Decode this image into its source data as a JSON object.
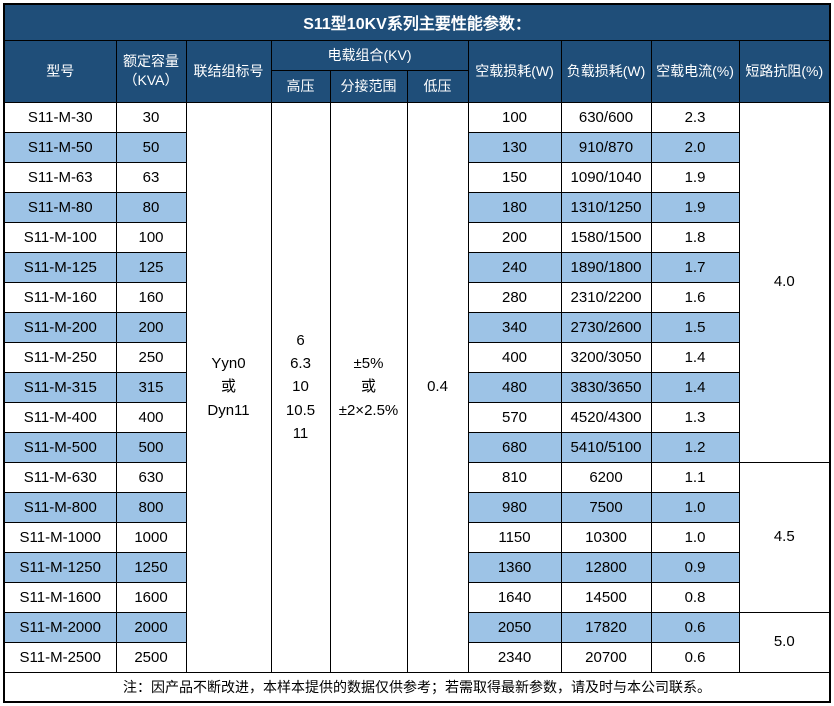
{
  "title": "S11型10KV系列主要性能参数：",
  "colors": {
    "header_bg": "#1F4E79",
    "stripe_bg": "#9DC3E6",
    "border": "#000000",
    "header_text": "#FFFFFF"
  },
  "header": {
    "model": "型号",
    "capacity_line1": "额定容量",
    "capacity_line2": "（KVA）",
    "connection": "联结组标号",
    "voltage_group": "电载组合(KV)",
    "hv": "高压",
    "tap_range": "分接范围",
    "lv": "低压",
    "no_load_loss": "空载损耗(W)",
    "load_loss": "负载损耗(W)",
    "no_load_current": "空载电流(%)",
    "impedance": "短路抗阻(%)"
  },
  "merged": {
    "connection": [
      "Yyn0",
      "或",
      "Dyn11"
    ],
    "hv": [
      "6",
      "6.3",
      "10",
      "10.5",
      "11"
    ],
    "tap_range": [
      "±5%",
      "或",
      "±2×2.5%"
    ],
    "lv": "0.4"
  },
  "impedance_groups": [
    {
      "value": "4.0",
      "rows": 12
    },
    {
      "value": "4.5",
      "rows": 5
    },
    {
      "value": "5.0",
      "rows": 2
    }
  ],
  "rows": [
    {
      "model": "S11-M-30",
      "capacity": "30",
      "no_load_loss": "100",
      "load_loss": "630/600",
      "no_load_current": "2.3"
    },
    {
      "model": "S11-M-50",
      "capacity": "50",
      "no_load_loss": "130",
      "load_loss": "910/870",
      "no_load_current": "2.0"
    },
    {
      "model": "S11-M-63",
      "capacity": "63",
      "no_load_loss": "150",
      "load_loss": "1090/1040",
      "no_load_current": "1.9"
    },
    {
      "model": "S11-M-80",
      "capacity": "80",
      "no_load_loss": "180",
      "load_loss": "1310/1250",
      "no_load_current": "1.9"
    },
    {
      "model": "S11-M-100",
      "capacity": "100",
      "no_load_loss": "200",
      "load_loss": "1580/1500",
      "no_load_current": "1.8"
    },
    {
      "model": "S11-M-125",
      "capacity": "125",
      "no_load_loss": "240",
      "load_loss": "1890/1800",
      "no_load_current": "1.7"
    },
    {
      "model": "S11-M-160",
      "capacity": "160",
      "no_load_loss": "280",
      "load_loss": "2310/2200",
      "no_load_current": "1.6"
    },
    {
      "model": "S11-M-200",
      "capacity": "200",
      "no_load_loss": "340",
      "load_loss": "2730/2600",
      "no_load_current": "1.5"
    },
    {
      "model": "S11-M-250",
      "capacity": "250",
      "no_load_loss": "400",
      "load_loss": "3200/3050",
      "no_load_current": "1.4"
    },
    {
      "model": "S11-M-315",
      "capacity": "315",
      "no_load_loss": "480",
      "load_loss": "3830/3650",
      "no_load_current": "1.4"
    },
    {
      "model": "S11-M-400",
      "capacity": "400",
      "no_load_loss": "570",
      "load_loss": "4520/4300",
      "no_load_current": "1.3"
    },
    {
      "model": "S11-M-500",
      "capacity": "500",
      "no_load_loss": "680",
      "load_loss": "5410/5100",
      "no_load_current": "1.2"
    },
    {
      "model": "S11-M-630",
      "capacity": "630",
      "no_load_loss": "810",
      "load_loss": "6200",
      "no_load_current": "1.1"
    },
    {
      "model": "S11-M-800",
      "capacity": "800",
      "no_load_loss": "980",
      "load_loss": "7500",
      "no_load_current": "1.0"
    },
    {
      "model": "S11-M-1000",
      "capacity": "1000",
      "no_load_loss": "1150",
      "load_loss": "10300",
      "no_load_current": "1.0"
    },
    {
      "model": "S11-M-1250",
      "capacity": "1250",
      "no_load_loss": "1360",
      "load_loss": "12800",
      "no_load_current": "0.9"
    },
    {
      "model": "S11-M-1600",
      "capacity": "1600",
      "no_load_loss": "1640",
      "load_loss": "14500",
      "no_load_current": "0.8"
    },
    {
      "model": "S11-M-2000",
      "capacity": "2000",
      "no_load_loss": "2050",
      "load_loss": "17820",
      "no_load_current": "0.6"
    },
    {
      "model": "S11-M-2500",
      "capacity": "2500",
      "no_load_loss": "2340",
      "load_loss": "20700",
      "no_load_current": "0.6"
    }
  ],
  "footer_note": "注：因产品不断改进，本样本提供的数据仅供参考；若需取得最新参数，请及时与本公司联系。"
}
